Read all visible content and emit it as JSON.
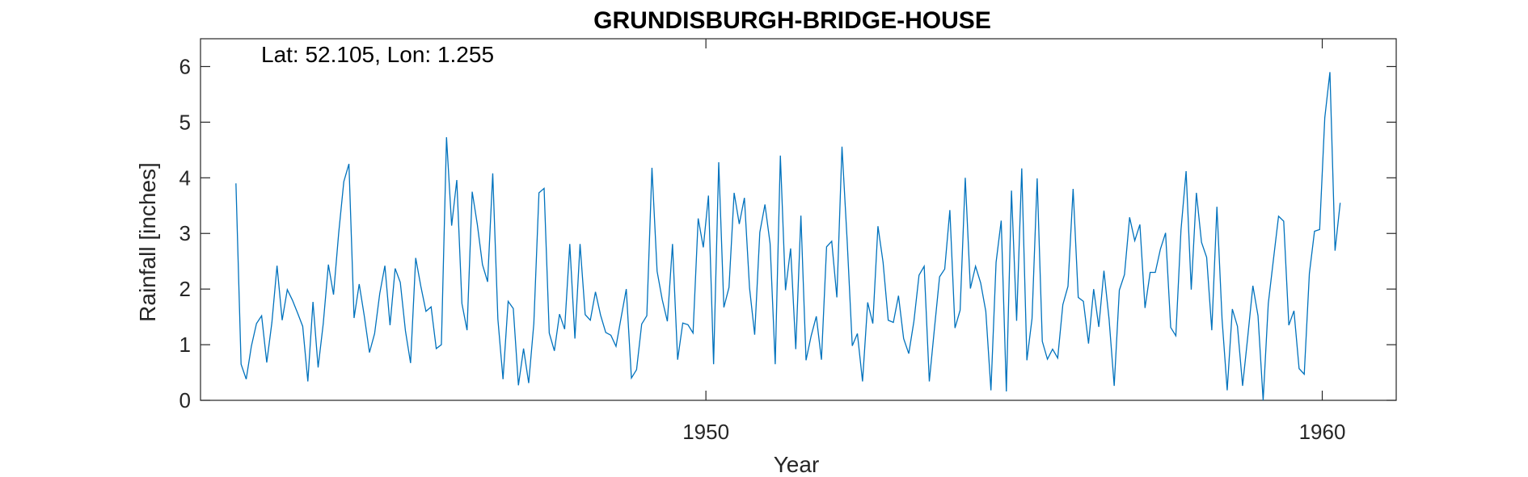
{
  "chart_data": {
    "type": "line",
    "title": "GRUNDISBURGH-BRIDGE-HOUSE",
    "xlabel": "Year",
    "ylabel": "Rainfall [inches]",
    "annotation": "Lat: 52.105, Lon: 1.255",
    "xlim": [
      1941.8,
      1961.2
    ],
    "ylim": [
      0,
      6.5
    ],
    "xticks": [
      1950,
      1960
    ],
    "xtick_labels": [
      "1950",
      "1960"
    ],
    "yticks": [
      0,
      1,
      2,
      3,
      4,
      5,
      6
    ],
    "ytick_labels": [
      "0",
      "1",
      "2",
      "3",
      "4",
      "5",
      "6"
    ],
    "grid": false,
    "line_color": "#0072BD",
    "series": [
      {
        "x_start": 1942.375,
        "x_step": 0.08333,
        "values": [
          3.9,
          0.65,
          0.38,
          0.97,
          1.38,
          1.52,
          0.68,
          1.4,
          2.42,
          1.44,
          1.99,
          1.8,
          1.57,
          1.33,
          0.34,
          1.77,
          0.59,
          1.38,
          2.44,
          1.9,
          3.0,
          3.93,
          4.25,
          1.48,
          2.09,
          1.51,
          0.86,
          1.2,
          1.92,
          2.42,
          1.35,
          2.37,
          2.12,
          1.25,
          0.67,
          2.56,
          2.05,
          1.6,
          1.68,
          0.93,
          1.0,
          4.73,
          3.14,
          3.96,
          1.74,
          1.26,
          3.75,
          3.16,
          2.44,
          2.13,
          4.08,
          1.46,
          0.38,
          1.78,
          1.65,
          0.27,
          0.93,
          0.31,
          1.38,
          3.73,
          3.81,
          1.21,
          0.89,
          1.55,
          1.28,
          2.81,
          1.11,
          2.81,
          1.54,
          1.44,
          1.95,
          1.53,
          1.22,
          1.17,
          0.97,
          1.49,
          2.0,
          0.4,
          0.55,
          1.37,
          1.52,
          4.18,
          2.32,
          1.81,
          1.42,
          2.81,
          0.73,
          1.39,
          1.36,
          1.21,
          3.27,
          2.75,
          3.68,
          0.65,
          4.28,
          1.67,
          2.03,
          3.73,
          3.17,
          3.64,
          2.02,
          1.18,
          3.02,
          3.52,
          2.82,
          0.65,
          4.4,
          1.98,
          2.73,
          0.92,
          3.32,
          0.72,
          1.16,
          1.51,
          0.73,
          2.76,
          2.86,
          1.85,
          4.56,
          2.88,
          0.98,
          1.2,
          0.34,
          1.76,
          1.38,
          3.13,
          2.48,
          1.44,
          1.4,
          1.88,
          1.11,
          0.84,
          1.42,
          2.25,
          2.41,
          0.34,
          1.29,
          2.22,
          2.36,
          3.42,
          1.3,
          1.62,
          4.0,
          2.01,
          2.41,
          2.11,
          1.6,
          0.18,
          2.48,
          3.23,
          0.16,
          3.77,
          1.43,
          4.17,
          0.72,
          1.47,
          3.99,
          1.06,
          0.74,
          0.92,
          0.76,
          1.72,
          2.05,
          3.8,
          1.85,
          1.78,
          1.02,
          2.0,
          1.32,
          2.33,
          1.46,
          0.26,
          1.98,
          2.26,
          3.29,
          2.87,
          3.16,
          1.66,
          2.3,
          2.3,
          2.72,
          3.01,
          1.31,
          1.16,
          3.06,
          4.12,
          1.99,
          3.73,
          2.84,
          2.57,
          1.26,
          3.48,
          1.46,
          0.18,
          1.64,
          1.33,
          0.26,
          1.14,
          2.06,
          1.52,
          0.0,
          1.74,
          2.53,
          3.31,
          3.22,
          1.35,
          1.61,
          0.57,
          0.47,
          2.28,
          3.04,
          3.07,
          5.08,
          5.9,
          2.69,
          3.55
        ]
      }
    ]
  }
}
